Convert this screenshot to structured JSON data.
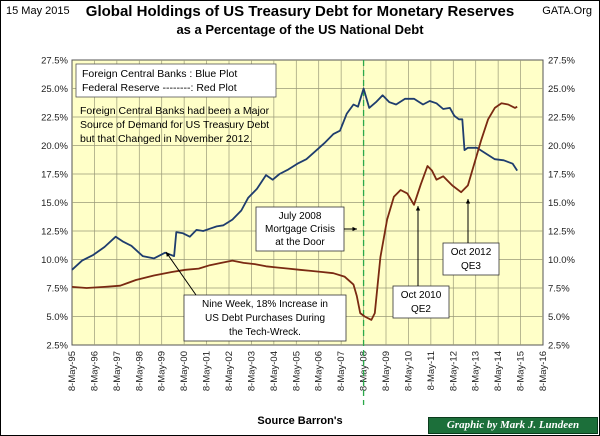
{
  "header": {
    "date": "15 May 2015",
    "site": "GATA.Org",
    "title_line1": "Global Holdings of US Treasury Debt for Monetary Reserves",
    "title_line2": "as a Percentage of the US National Debt"
  },
  "footer": {
    "source": "Source Barron's",
    "credit": "Graphic by Mark J. Lundeen"
  },
  "colors": {
    "plot_bg": "#ffffc8",
    "grid": "#9a9a78",
    "blue": "#1f3d6e",
    "red": "#7a2a12",
    "marker": "#2aa84a"
  },
  "chart_data": {
    "type": "line",
    "title": "Global Holdings of US Treasury Debt for Monetary Reserves as a Percentage of the US National Debt",
    "xlabel": "",
    "ylabel": "",
    "ylim": [
      2.5,
      27.5
    ],
    "y_ticks": [
      "2.5%",
      "5.0%",
      "7.5%",
      "10.0%",
      "12.5%",
      "15.0%",
      "17.5%",
      "20.0%",
      "22.5%",
      "25.0%",
      "27.5%"
    ],
    "x_ticks": [
      "8-May-95",
      "8-May-96",
      "8-May-97",
      "8-May-98",
      "8-May-99",
      "8-May-00",
      "8-May-01",
      "8-May-02",
      "8-May-03",
      "8-May-04",
      "8-May-05",
      "8-May-06",
      "8-May-07",
      "8-May-08",
      "8-May-09",
      "8-May-10",
      "8-May-11",
      "8-May-12",
      "8-May-13",
      "8-May-14",
      "8-May-15",
      "8-May-16"
    ],
    "xlim": [
      1995.35,
      2016.35
    ],
    "marker_x": 2008.35,
    "legend": {
      "line1": "Foreign Central Banks : Blue Plot",
      "line2": "Federal Reserve --------: Red Plot",
      "note1": "Foreign Central Banks had been a Major",
      "note2": "Source of Demand for US Treasury Debt",
      "note3": "but that Changed in November 2012."
    },
    "series": [
      {
        "name": "Foreign Central Banks",
        "x": [
          1995.35,
          1995.8,
          1996.3,
          1996.8,
          1997.3,
          1997.6,
          1998.0,
          1998.5,
          1999.0,
          1999.5,
          1999.9,
          2000.0,
          2000.3,
          2000.6,
          2000.9,
          2001.2,
          2001.5,
          2001.8,
          2002.1,
          2002.5,
          2002.9,
          2003.2,
          2003.6,
          2004.0,
          2004.3,
          2004.6,
          2005.0,
          2005.4,
          2005.8,
          2006.2,
          2006.6,
          2007.0,
          2007.3,
          2007.6,
          2007.9,
          2008.1,
          2008.35,
          2008.6,
          2008.9,
          2009.2,
          2009.5,
          2009.8,
          2010.2,
          2010.6,
          2011.0,
          2011.3,
          2011.6,
          2011.9,
          2012.2,
          2012.4,
          2012.6,
          2012.75,
          2012.85,
          2013.0,
          2013.4,
          2013.8,
          2014.2,
          2014.6,
          2015.0,
          2015.2
        ],
        "values": [
          9.1,
          9.9,
          10.4,
          11.1,
          12.0,
          11.6,
          11.2,
          10.3,
          10.1,
          10.6,
          10.3,
          12.4,
          12.3,
          12.0,
          12.6,
          12.5,
          12.7,
          12.9,
          13.0,
          13.5,
          14.3,
          15.4,
          16.2,
          17.4,
          17.0,
          17.5,
          17.9,
          18.4,
          18.8,
          19.5,
          20.2,
          21.0,
          21.3,
          22.8,
          23.6,
          23.4,
          25.0,
          23.3,
          23.8,
          24.4,
          23.8,
          23.6,
          24.1,
          24.1,
          23.6,
          23.9,
          23.7,
          23.2,
          23.3,
          22.6,
          22.3,
          22.3,
          19.6,
          19.8,
          19.8,
          19.3,
          18.8,
          18.7,
          18.4,
          17.8
        ]
      },
      {
        "name": "Federal Reserve",
        "x": [
          1995.35,
          1996.0,
          1996.8,
          1997.5,
          1998.2,
          1999.0,
          1999.8,
          2000.4,
          2001.0,
          2001.5,
          2002.0,
          2002.5,
          2003.0,
          2003.5,
          2004.0,
          2004.5,
          2005.0,
          2005.5,
          2006.0,
          2006.5,
          2007.0,
          2007.5,
          2007.9,
          2008.05,
          2008.2,
          2008.4,
          2008.7,
          2008.85,
          2009.1,
          2009.4,
          2009.7,
          2010.0,
          2010.3,
          2010.6,
          2010.9,
          2011.2,
          2011.4,
          2011.6,
          2011.9,
          2012.3,
          2012.7,
          2013.0,
          2013.3,
          2013.6,
          2013.9,
          2014.2,
          2014.5,
          2014.8,
          2015.1,
          2015.2
        ],
        "values": [
          7.6,
          7.5,
          7.6,
          7.7,
          8.2,
          8.6,
          8.9,
          9.1,
          9.2,
          9.5,
          9.7,
          9.9,
          9.7,
          9.6,
          9.4,
          9.3,
          9.2,
          9.1,
          9.0,
          8.9,
          8.8,
          8.5,
          7.8,
          6.8,
          5.3,
          5.0,
          4.7,
          5.3,
          10.2,
          13.5,
          15.5,
          16.1,
          15.8,
          14.8,
          16.6,
          18.2,
          17.8,
          17.0,
          17.3,
          16.5,
          15.9,
          16.5,
          18.5,
          20.5,
          22.3,
          23.3,
          23.7,
          23.6,
          23.3,
          23.4
        ]
      }
    ],
    "annotations": [
      {
        "name": "mortgage-crisis-note",
        "lines": [
          "July 2008",
          "Mortgage Crisis",
          "at the Door"
        ]
      },
      {
        "name": "tech-wreck-note",
        "lines": [
          "Nine Week, 18% Increase in",
          "US Debt Purchases During",
          "the Tech-Wreck."
        ]
      },
      {
        "name": "qe2-note",
        "lines": [
          "Oct 2010",
          "QE2"
        ]
      },
      {
        "name": "qe3-note",
        "lines": [
          "Oct 2012",
          "QE3"
        ]
      }
    ]
  }
}
